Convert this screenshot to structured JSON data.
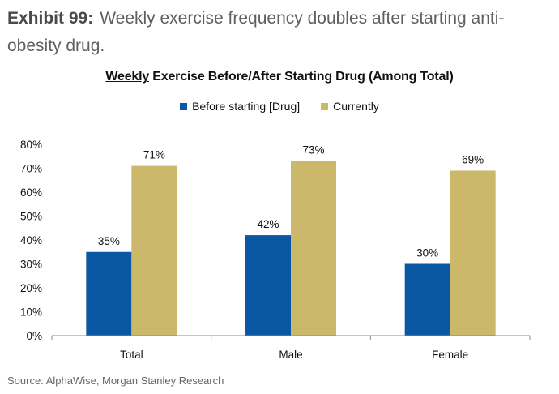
{
  "header": {
    "exhibit_label": "Exhibit 99:",
    "exhibit_title": "Weekly exercise frequency doubles after starting anti-obesity drug."
  },
  "chart_data": {
    "type": "bar",
    "title_underlined": "Weekly",
    "title_rest": " Exercise Before/After Starting Drug (Among Total)",
    "categories": [
      "Total",
      "Male",
      "Female"
    ],
    "series": [
      {
        "name": "Before starting [Drug]",
        "color": "#0a57a3",
        "values": [
          35,
          42,
          30
        ]
      },
      {
        "name": "Currently",
        "color": "#ccb86a",
        "values": [
          71,
          73,
          69
        ]
      }
    ],
    "ylim": [
      0,
      80
    ],
    "yticks": [
      "0%",
      "10%",
      "20%",
      "30%",
      "40%",
      "50%",
      "60%",
      "70%",
      "80%"
    ],
    "value_suffix": "%",
    "legend_position": "top",
    "grid": false
  },
  "source": "Source: AlphaWise, Morgan Stanley Research"
}
